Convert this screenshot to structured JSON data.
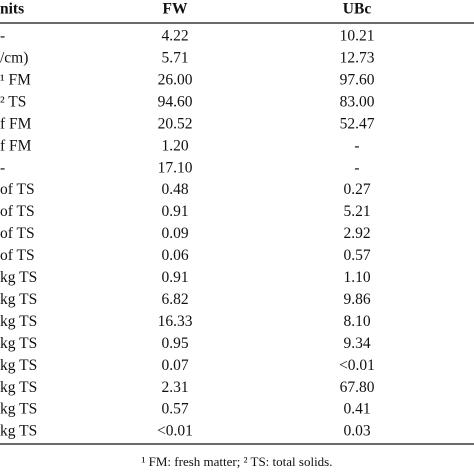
{
  "table": {
    "header": [
      "nits",
      "FW",
      "UBc"
    ],
    "rows": [
      [
        "-",
        "4.22",
        "10.21"
      ],
      [
        "/cm)",
        "5.71",
        "12.73"
      ],
      [
        "¹ FM",
        "26.00",
        "97.60"
      ],
      [
        "² TS",
        "94.60",
        "83.00"
      ],
      [
        "f FM",
        "20.52",
        "52.47"
      ],
      [
        "f FM",
        "1.20",
        "-"
      ],
      [
        "-",
        "17.10",
        "-"
      ],
      [
        "of TS",
        "0.48",
        "0.27"
      ],
      [
        "of TS",
        "0.91",
        "5.21"
      ],
      [
        "of TS",
        "0.09",
        "2.92"
      ],
      [
        "of TS",
        "0.06",
        "0.57"
      ],
      [
        "kg TS",
        "0.91",
        "1.10"
      ],
      [
        "kg TS",
        "6.82",
        "9.86"
      ],
      [
        "kg TS",
        "16.33",
        "8.10"
      ],
      [
        "kg TS",
        "0.95",
        "9.34"
      ],
      [
        "kg TS",
        "0.07",
        "<0.01"
      ],
      [
        "kg TS",
        "2.31",
        "67.80"
      ],
      [
        "kg TS",
        "0.57",
        "0.41"
      ],
      [
        "kg TS",
        "<0.01",
        "0.03"
      ]
    ],
    "footnote": "¹ FM: fresh matter; ² TS: total solids."
  }
}
